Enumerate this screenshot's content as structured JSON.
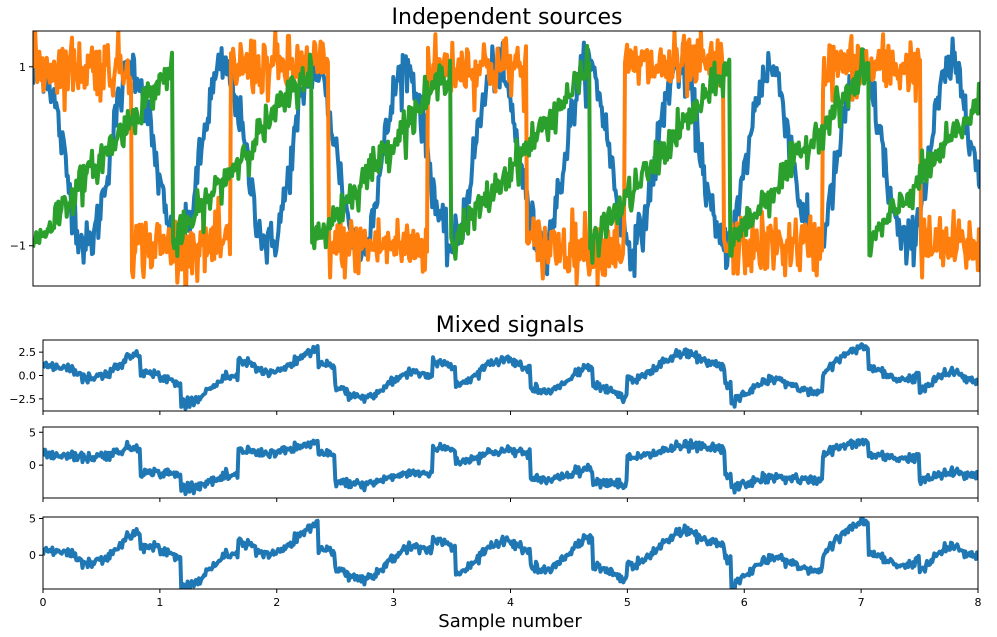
{
  "chart_data": [
    {
      "type": "line",
      "title": "Independent sources",
      "xlabel": "",
      "ylabel": "",
      "xlim": [
        0,
        8
      ],
      "ylim": [
        -1.45,
        1.4
      ],
      "yticks": [
        {
          "value": 1,
          "label": "1"
        },
        {
          "value": -1,
          "label": "−1"
        }
      ],
      "xticks_visible": false,
      "grid": false,
      "legend": "none",
      "series": [
        {
          "color": "#1f77b4",
          "shape": "sine",
          "freq": 1.3,
          "phase": 1.0,
          "amp": 1.0,
          "noise": 0.13
        },
        {
          "color": "#ff7f0e",
          "shape": "square",
          "freq": 0.6,
          "phase": 0.0,
          "amp": 1.0,
          "noise": 0.17
        },
        {
          "color": "#2ca02c",
          "shape": "sawtooth",
          "freq": 0.85,
          "phase": 0.0,
          "amp": 1.0,
          "noise": 0.1
        }
      ]
    },
    {
      "type": "line",
      "title": "Mixed signals",
      "xlim": [
        0,
        8
      ],
      "ylim": [
        -3.8,
        3.8
      ],
      "yticks": [
        {
          "value": 2.5,
          "label": "2.5"
        },
        {
          "value": 0,
          "label": "0.0"
        },
        {
          "value": -2.5,
          "label": "−2.5"
        }
      ],
      "xticks_visible": false,
      "series": [
        {
          "color": "#1f77b4",
          "mix": [
            1.0,
            1.0,
            1.0
          ]
        }
      ]
    },
    {
      "type": "line",
      "title": "",
      "xlim": [
        0,
        8
      ],
      "ylim": [
        -5.0,
        5.8
      ],
      "yticks": [
        {
          "value": 5,
          "label": "5"
        },
        {
          "value": 0,
          "label": "0"
        }
      ],
      "xticks_visible": false,
      "series": [
        {
          "color": "#1f77b4",
          "mix": [
            0.5,
            2.0,
            1.0
          ]
        }
      ]
    },
    {
      "type": "line",
      "title": "",
      "xlabel": "Sample number",
      "xlim": [
        0,
        8
      ],
      "ylim": [
        -4.6,
        5.2
      ],
      "yticks": [
        {
          "value": 5,
          "label": "5"
        },
        {
          "value": 0,
          "label": "0"
        }
      ],
      "xticks": [
        0,
        1,
        2,
        3,
        4,
        5,
        6,
        7,
        8
      ],
      "xticks_visible": true,
      "series": [
        {
          "color": "#1f77b4",
          "mix": [
            1.5,
            1.0,
            2.0
          ]
        }
      ]
    }
  ]
}
